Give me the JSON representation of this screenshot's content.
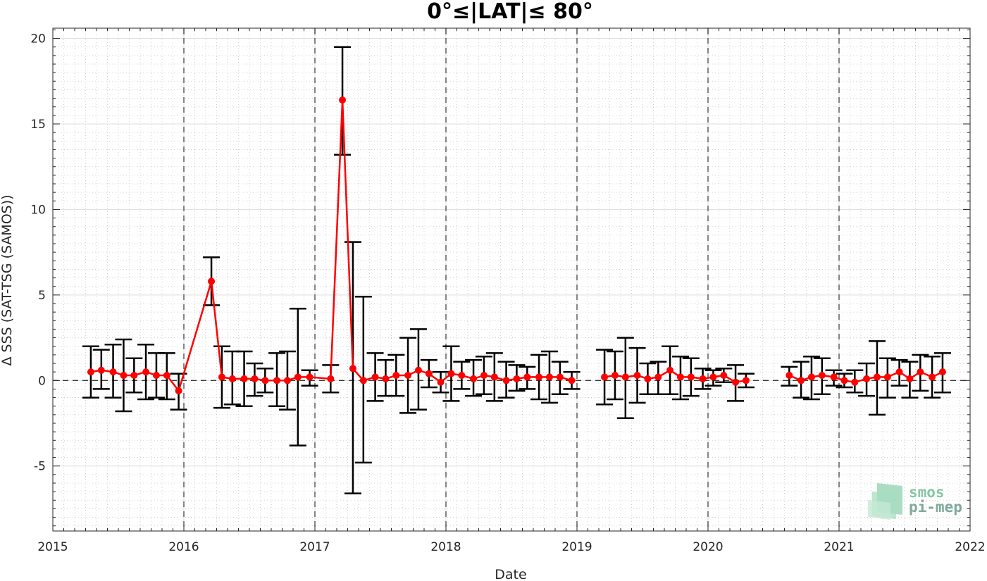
{
  "chart_data": {
    "type": "line",
    "title": "0°≤|LAT|≤ 80°",
    "xlabel": "Date",
    "ylabel": "Δ SSS (SAT-TSG (SAMOS))",
    "xlim": [
      2015,
      2022
    ],
    "ylim": [
      -8.8,
      20.6
    ],
    "x_ticks": [
      2015,
      2016,
      2017,
      2018,
      2019,
      2020,
      2021,
      2022
    ],
    "x_tick_labels": [
      "2015",
      "2016",
      "2017",
      "2018",
      "2019",
      "2020",
      "2021",
      "2022"
    ],
    "y_ticks": [
      -5,
      0,
      5,
      10,
      15,
      20
    ],
    "y_tick_labels": [
      "-5",
      "0",
      "5",
      "10",
      "15",
      "20"
    ],
    "grid": true,
    "year_dividers": [
      2016,
      2017,
      2018,
      2019,
      2020,
      2021
    ],
    "zero_line": 0,
    "series": [
      {
        "color": "#ff0000",
        "errorbar_color": "#000000",
        "segments": [
          [
            {
              "x": 2015.29,
              "y": 0.5,
              "lo": -1.0,
              "hi": 2.0
            },
            {
              "x": 2015.37,
              "y": 0.6,
              "lo": -0.5,
              "hi": 1.8
            },
            {
              "x": 2015.46,
              "y": 0.5,
              "lo": -1.0,
              "hi": 2.1
            },
            {
              "x": 2015.54,
              "y": 0.3,
              "lo": -1.8,
              "hi": 2.4
            },
            {
              "x": 2015.62,
              "y": 0.3,
              "lo": -0.7,
              "hi": 1.3
            },
            {
              "x": 2015.71,
              "y": 0.5,
              "lo": -1.1,
              "hi": 2.1
            },
            {
              "x": 2015.79,
              "y": 0.3,
              "lo": -1.0,
              "hi": 1.6
            },
            {
              "x": 2015.87,
              "y": 0.3,
              "lo": -1.1,
              "hi": 1.6
            },
            {
              "x": 2015.96,
              "y": -0.6,
              "lo": -1.7,
              "hi": 0.4
            },
            {
              "x": 2016.21,
              "y": 5.8,
              "lo": 4.4,
              "hi": 7.2
            },
            {
              "x": 2016.29,
              "y": 0.2,
              "lo": -1.6,
              "hi": 2.0
            },
            {
              "x": 2016.37,
              "y": 0.1,
              "lo": -1.4,
              "hi": 1.7
            },
            {
              "x": 2016.46,
              "y": 0.1,
              "lo": -1.5,
              "hi": 1.7
            },
            {
              "x": 2016.54,
              "y": 0.1,
              "lo": -0.9,
              "hi": 1.0
            },
            {
              "x": 2016.62,
              "y": 0.0,
              "lo": -0.7,
              "hi": 0.7
            },
            {
              "x": 2016.71,
              "y": 0.0,
              "lo": -1.5,
              "hi": 1.6
            },
            {
              "x": 2016.79,
              "y": 0.0,
              "lo": -1.7,
              "hi": 1.7
            },
            {
              "x": 2016.87,
              "y": 0.2,
              "lo": -3.8,
              "hi": 4.2
            },
            {
              "x": 2016.96,
              "y": 0.2,
              "lo": -0.3,
              "hi": 0.6
            },
            {
              "x": 2017.12,
              "y": 0.1,
              "lo": -0.7,
              "hi": 0.9
            },
            {
              "x": 2017.21,
              "y": 16.4,
              "lo": 13.2,
              "hi": 19.5
            },
            {
              "x": 2017.29,
              "y": 0.7,
              "lo": -6.6,
              "hi": 8.1
            },
            {
              "x": 2017.37,
              "y": 0.0,
              "lo": -4.8,
              "hi": 4.9
            },
            {
              "x": 2017.46,
              "y": 0.2,
              "lo": -1.2,
              "hi": 1.6
            },
            {
              "x": 2017.54,
              "y": 0.1,
              "lo": -0.9,
              "hi": 1.2
            },
            {
              "x": 2017.62,
              "y": 0.3,
              "lo": -0.9,
              "hi": 1.5
            },
            {
              "x": 2017.71,
              "y": 0.3,
              "lo": -1.9,
              "hi": 2.5
            },
            {
              "x": 2017.79,
              "y": 0.6,
              "lo": -1.7,
              "hi": 3.0
            },
            {
              "x": 2017.87,
              "y": 0.4,
              "lo": -0.4,
              "hi": 1.2
            },
            {
              "x": 2017.96,
              "y": -0.1,
              "lo": -0.7,
              "hi": 0.5
            },
            {
              "x": 2018.04,
              "y": 0.4,
              "lo": -1.2,
              "hi": 2.0
            },
            {
              "x": 2018.12,
              "y": 0.3,
              "lo": -0.5,
              "hi": 1.1
            },
            {
              "x": 2018.21,
              "y": 0.1,
              "lo": -0.9,
              "hi": 1.2
            },
            {
              "x": 2018.29,
              "y": 0.3,
              "lo": -0.8,
              "hi": 1.4
            },
            {
              "x": 2018.37,
              "y": 0.2,
              "lo": -1.2,
              "hi": 1.6
            },
            {
              "x": 2018.46,
              "y": 0.0,
              "lo": -1.0,
              "hi": 1.1
            },
            {
              "x": 2018.54,
              "y": 0.1,
              "lo": -0.6,
              "hi": 0.9
            },
            {
              "x": 2018.62,
              "y": 0.2,
              "lo": -0.5,
              "hi": 0.8
            },
            {
              "x": 2018.71,
              "y": 0.2,
              "lo": -1.1,
              "hi": 1.5
            },
            {
              "x": 2018.79,
              "y": 0.2,
              "lo": -1.3,
              "hi": 1.7
            },
            {
              "x": 2018.87,
              "y": 0.2,
              "lo": -0.8,
              "hi": 1.1
            },
            {
              "x": 2018.96,
              "y": 0.0,
              "lo": -0.5,
              "hi": 0.5
            }
          ],
          [
            {
              "x": 2019.21,
              "y": 0.2,
              "lo": -1.4,
              "hi": 1.8
            },
            {
              "x": 2019.29,
              "y": 0.3,
              "lo": -1.1,
              "hi": 1.7
            },
            {
              "x": 2019.37,
              "y": 0.2,
              "lo": -2.2,
              "hi": 2.5
            },
            {
              "x": 2019.46,
              "y": 0.3,
              "lo": -1.3,
              "hi": 1.9
            },
            {
              "x": 2019.54,
              "y": 0.1,
              "lo": -0.8,
              "hi": 1.0
            },
            {
              "x": 2019.62,
              "y": 0.2,
              "lo": -0.8,
              "hi": 1.1
            },
            {
              "x": 2019.71,
              "y": 0.6,
              "lo": -0.8,
              "hi": 2.0
            },
            {
              "x": 2019.79,
              "y": 0.2,
              "lo": -1.1,
              "hi": 1.4
            },
            {
              "x": 2019.87,
              "y": 0.2,
              "lo": -0.9,
              "hi": 1.3
            },
            {
              "x": 2019.96,
              "y": 0.1,
              "lo": -0.5,
              "hi": 0.7
            },
            {
              "x": 2020.04,
              "y": 0.2,
              "lo": -0.3,
              "hi": 0.6
            },
            {
              "x": 2020.12,
              "y": 0.3,
              "lo": -0.1,
              "hi": 0.7
            },
            {
              "x": 2020.21,
              "y": -0.1,
              "lo": -1.2,
              "hi": 0.9
            },
            {
              "x": 2020.29,
              "y": 0.0,
              "lo": -0.4,
              "hi": 0.4
            }
          ],
          [
            {
              "x": 2020.62,
              "y": 0.3,
              "lo": -0.3,
              "hi": 0.8
            },
            {
              "x": 2020.71,
              "y": 0.0,
              "lo": -1.0,
              "hi": 1.1
            },
            {
              "x": 2020.79,
              "y": 0.2,
              "lo": -1.1,
              "hi": 1.4
            },
            {
              "x": 2020.87,
              "y": 0.3,
              "lo": -0.8,
              "hi": 1.3
            },
            {
              "x": 2020.96,
              "y": 0.2,
              "lo": -0.3,
              "hi": 0.6
            },
            {
              "x": 2021.04,
              "y": 0.0,
              "lo": -0.4,
              "hi": 0.4
            },
            {
              "x": 2021.12,
              "y": -0.1,
              "lo": -0.7,
              "hi": 0.6
            },
            {
              "x": 2021.21,
              "y": 0.1,
              "lo": -0.9,
              "hi": 1.0
            },
            {
              "x": 2021.29,
              "y": 0.2,
              "lo": -2.0,
              "hi": 2.3
            },
            {
              "x": 2021.37,
              "y": 0.2,
              "lo": -1.0,
              "hi": 1.3
            },
            {
              "x": 2021.46,
              "y": 0.5,
              "lo": -0.3,
              "hi": 1.2
            },
            {
              "x": 2021.54,
              "y": 0.1,
              "lo": -1.0,
              "hi": 1.1
            },
            {
              "x": 2021.62,
              "y": 0.5,
              "lo": -0.6,
              "hi": 1.5
            },
            {
              "x": 2021.71,
              "y": 0.2,
              "lo": -1.0,
              "hi": 1.4
            },
            {
              "x": 2021.79,
              "y": 0.5,
              "lo": -0.7,
              "hi": 1.6
            }
          ]
        ]
      }
    ]
  },
  "logo": {
    "line1": "smos",
    "line2": "pi-mep",
    "colors": [
      "#86c8a4",
      "#7fa99a"
    ]
  }
}
